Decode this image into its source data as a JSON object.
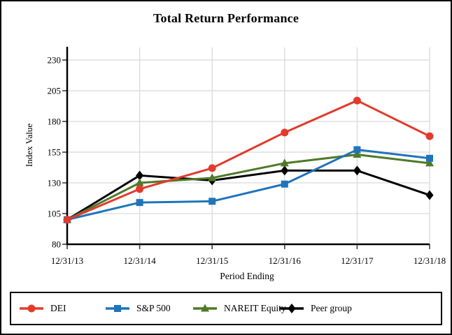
{
  "chart_data": {
    "type": "line",
    "title": "Total Return Performance",
    "xlabel": "Period Ending",
    "ylabel": "Index Value",
    "categories": [
      "12/31/13",
      "12/31/14",
      "12/31/15",
      "12/31/16",
      "12/31/17",
      "12/31/18"
    ],
    "y_ticks": [
      80,
      105,
      130,
      155,
      180,
      205,
      230
    ],
    "ylim": [
      80,
      230
    ],
    "grid": true,
    "legend_position": "bottom-boxed",
    "series": [
      {
        "name": "DEI",
        "color": "#E23B2E",
        "marker": "circle",
        "values": [
          100,
          125,
          142,
          171,
          197,
          168
        ]
      },
      {
        "name": "S&P 500",
        "color": "#1F74BB",
        "marker": "square",
        "values": [
          100,
          114,
          115,
          129,
          157,
          150
        ]
      },
      {
        "name": "NAREIT Equity",
        "color": "#4E7A27",
        "marker": "triangle",
        "values": [
          100,
          130,
          134,
          146,
          153,
          146
        ]
      },
      {
        "name": "Peer group",
        "color": "#000000",
        "marker": "diamond",
        "values": [
          100,
          136,
          132,
          140,
          140,
          120
        ]
      }
    ]
  },
  "colors": {
    "background": "#FFFFFF",
    "border": "#000000",
    "axis": "#000000",
    "gridline": "#D9D9D9",
    "tick": "#404040",
    "text": "#000000"
  }
}
